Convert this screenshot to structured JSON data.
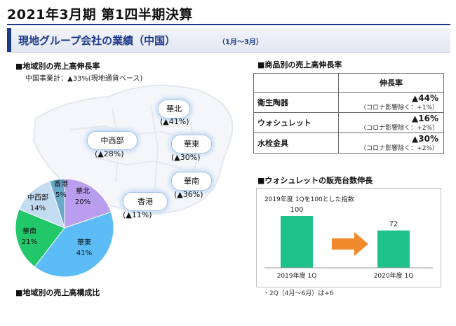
{
  "header": {
    "title": "2021年3月期 第1四半期決算"
  },
  "banner": {
    "title": "現地グループ会社の業績（中国）",
    "period": "（1月～3月）"
  },
  "left": {
    "section_title": "■地域別の売上高伸長率",
    "subtitle": "中国事業計：▲33%(現地通貨ベース)",
    "regions": [
      {
        "name": "華北",
        "growth": "(▲41%)"
      },
      {
        "name": "中西部",
        "growth": "(▲28%)"
      },
      {
        "name": "華東",
        "growth": "(▲30%)"
      },
      {
        "name": "華南",
        "growth": "(▲36%)"
      },
      {
        "name": "香港",
        "growth": "(▲11%)"
      }
    ],
    "bottom_title": "■地域別の売上高構成比"
  },
  "chart_data": [
    {
      "type": "pie",
      "categories": [
        "華北",
        "華東",
        "華南",
        "中西部",
        "香港"
      ],
      "values": [
        20,
        41,
        21,
        14,
        5
      ],
      "labels": [
        "20%",
        "41%",
        "21%",
        "14%",
        "5%"
      ],
      "colors": [
        "#b99ef0",
        "#5bbcf6",
        "#22c76a",
        "#c4dcf2",
        "#6aa8c8"
      ]
    },
    {
      "type": "bar",
      "title": "2019年度 1Qを100とした指数",
      "categories": [
        "2019年度 1Q",
        "2020年度 1Q"
      ],
      "values": [
        100,
        72
      ],
      "ylim": [
        0,
        120
      ],
      "color": "#1ec28b"
    }
  ],
  "product": {
    "section_title": "■商品別の売上高伸長率",
    "header": "伸長率",
    "rows": [
      {
        "name": "衛生陶器",
        "rate": "▲44%",
        "note": "（コロナ影響除く：+1%）"
      },
      {
        "name": "ウォシュレット",
        "rate": "▲16%",
        "note": "（コロナ影響除く：+2%）"
      },
      {
        "name": "水栓金具",
        "rate": "▲30%",
        "note": "（コロナ影響除く：+2%）"
      }
    ]
  },
  "washlet": {
    "section_title": "■ウォシュレットの販売台数伸長",
    "footnote": "・2Q（4月～6月）は+6"
  },
  "colors": {
    "brand": "#1e3a8a",
    "arrow": "#f08a2c"
  }
}
